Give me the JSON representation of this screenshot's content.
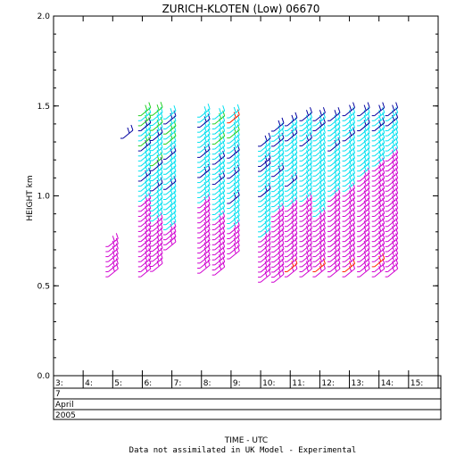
{
  "chart_data": {
    "type": "wind-barb time-height profile",
    "title": "ZURICH-KLOTEN (Low) 06670",
    "ylabel": "HEIGHT km",
    "xlabel": "TIME - UTC",
    "footnote": "Data not assimilated in UK Model - Experimental",
    "ylim": [
      0.0,
      2.0
    ],
    "yticks": [
      "0.0",
      "0.5",
      "1.0",
      "1.5",
      "2.0"
    ],
    "xlim": [
      3.0,
      16.0
    ],
    "hour_labels": [
      "3:",
      "4:",
      "5:",
      "6:",
      "7:",
      "8:",
      "9:",
      "10:",
      "11:",
      "12:",
      "13:",
      "14:",
      "15:"
    ],
    "date_rows": [
      "7",
      "April",
      "2005"
    ],
    "colors": {
      "magenta": "#d000d0",
      "cyan": "#00e0f0",
      "navy": "#0000a0",
      "green": "#20d020",
      "red": "#ff2000"
    },
    "profiles": [
      {
        "time": 4.85,
        "bottom": 0.55,
        "top": 0.72,
        "navy": [],
        "green": [],
        "red": []
      },
      {
        "time": 5.35,
        "bottom": 1.32,
        "top": 1.32,
        "navy": [
          1.32
        ],
        "green": [],
        "red": []
      },
      {
        "time": 5.95,
        "bottom": 0.55,
        "top": 1.45,
        "magenta_top": 0.95,
        "navy": [
          1.07,
          1.26,
          1.37
        ],
        "green": [
          1.29,
          1.4,
          1.45
        ],
        "red": []
      },
      {
        "time": 6.35,
        "bottom": 0.58,
        "top": 1.45,
        "magenta_top": 0.85,
        "navy": [
          1.03,
          1.15,
          1.3
        ],
        "green": [
          1.18,
          1.37,
          1.45
        ],
        "red": []
      },
      {
        "time": 6.8,
        "bottom": 0.7,
        "top": 1.45,
        "magenta_top": 0.8,
        "navy": [
          1.03,
          1.2,
          1.4
        ],
        "green": [
          1.28,
          1.35
        ],
        "red": []
      },
      {
        "time": 7.95,
        "bottom": 0.57,
        "top": 1.45,
        "magenta_top": 0.95,
        "navy": [
          1.1,
          1.22,
          1.37
        ],
        "green": [],
        "red": []
      },
      {
        "time": 8.45,
        "bottom": 0.56,
        "top": 1.45,
        "magenta_top": 0.85,
        "navy": [
          1.07,
          1.17,
          1.3
        ],
        "green": [
          1.3,
          1.4,
          1.45
        ],
        "red": []
      },
      {
        "time": 8.95,
        "bottom": 0.65,
        "top": 1.45,
        "magenta_top": 0.8,
        "navy": [
          0.95,
          1.1,
          1.22
        ],
        "green": [
          1.33
        ],
        "red": [
          1.4,
          1.45
        ]
      },
      {
        "time": 10.0,
        "bottom": 0.52,
        "top": 1.3,
        "magenta_top": 0.75,
        "navy": [
          1.0,
          1.15,
          1.27
        ],
        "green": [],
        "red": []
      },
      {
        "time": 10.45,
        "bottom": 0.52,
        "top": 1.38,
        "magenta_top": 0.9,
        "navy": [
          1.1,
          1.27,
          1.35
        ],
        "green": [],
        "red": []
      },
      {
        "time": 10.9,
        "bottom": 0.55,
        "top": 1.4,
        "magenta_top": 0.92,
        "navy": [
          1.05,
          1.3,
          1.4
        ],
        "green": [],
        "red": [
          0.58
        ]
      },
      {
        "time": 11.4,
        "bottom": 0.55,
        "top": 1.42,
        "magenta_top": 0.95,
        "navy": [
          1.28,
          1.42
        ],
        "green": [],
        "red": []
      },
      {
        "time": 11.85,
        "bottom": 0.55,
        "top": 1.42,
        "magenta_top": 0.88,
        "navy": [
          1.35,
          1.42
        ],
        "green": [],
        "red": [
          0.57
        ]
      },
      {
        "time": 12.35,
        "bottom": 0.55,
        "top": 1.42,
        "magenta_top": 0.98,
        "navy": [
          1.25,
          1.42
        ],
        "green": [],
        "red": []
      },
      {
        "time": 12.85,
        "bottom": 0.55,
        "top": 1.45,
        "magenta_top": 1.0,
        "navy": [
          1.3,
          1.45
        ],
        "green": [],
        "red": [
          0.58
        ]
      },
      {
        "time": 13.35,
        "bottom": 0.55,
        "top": 1.45,
        "magenta_top": 1.1,
        "navy": [
          1.37,
          1.45
        ],
        "green": [],
        "red": []
      },
      {
        "time": 13.85,
        "bottom": 0.55,
        "top": 1.45,
        "magenta_top": 1.15,
        "navy": [
          1.35,
          1.45
        ],
        "green": [],
        "red": [
          0.6
        ]
      },
      {
        "time": 14.3,
        "bottom": 0.55,
        "top": 1.45,
        "magenta_top": 1.2,
        "navy": [
          1.4,
          1.45
        ],
        "green": [],
        "red": []
      }
    ]
  }
}
